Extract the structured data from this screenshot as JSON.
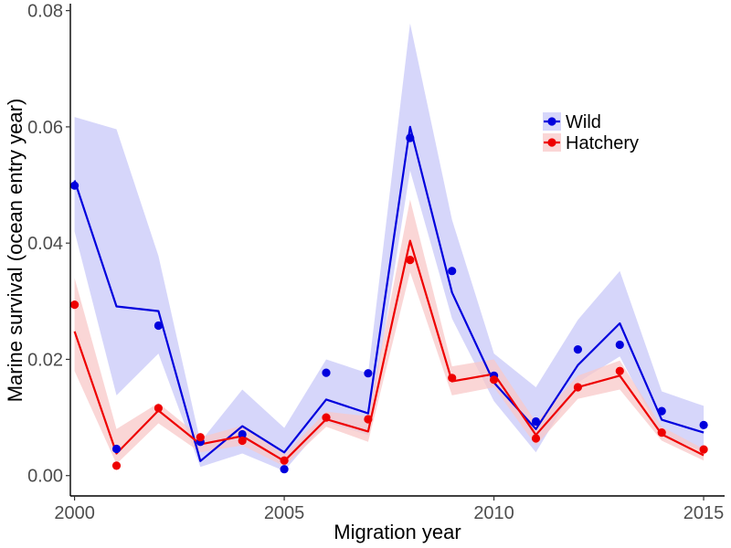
{
  "chart_data": {
    "type": "line",
    "title": "",
    "xlabel": "Migration year",
    "ylabel": "Marine survival (ocean entry year)",
    "xlim": [
      1999.9,
      2015.5
    ],
    "ylim": [
      -0.0035,
      0.0812
    ],
    "x_ticks": [
      2000,
      2005,
      2010,
      2015
    ],
    "y_ticks": [
      0.0,
      0.02,
      0.04,
      0.06,
      0.08
    ],
    "x_tick_labels": [
      "2000",
      "2005",
      "2010",
      "2015"
    ],
    "y_tick_labels": [
      "0.00",
      "0.02",
      "0.04",
      "0.06",
      "0.08"
    ],
    "grid": false,
    "legend_position": "top-right",
    "x": [
      2000,
      2001,
      2002,
      2003,
      2004,
      2005,
      2006,
      2007,
      2008,
      2009,
      2010,
      2011,
      2012,
      2013,
      2014,
      2015
    ],
    "series": [
      {
        "name": "Wild",
        "color": "#0000dd",
        "band_color": "#c8c8f8",
        "observed": [
          0.0499,
          0.0046,
          0.0258,
          0.0058,
          0.0071,
          0.0011,
          0.0177,
          0.0176,
          0.0581,
          0.0352,
          0.0172,
          0.0093,
          0.0217,
          0.0225,
          0.0111,
          0.0087
        ],
        "fitted": [
          0.0508,
          0.0291,
          0.0283,
          0.0025,
          0.0085,
          0.004,
          0.0131,
          0.0107,
          0.06,
          0.0315,
          0.016,
          0.008,
          0.019,
          0.0262,
          0.0096,
          0.0074
        ],
        "lower": [
          0.042,
          0.0138,
          0.021,
          0.0015,
          0.0038,
          0.0008,
          0.0092,
          0.007,
          0.0525,
          0.027,
          0.0128,
          0.004,
          0.016,
          0.0205,
          0.0068,
          0.0042
        ],
        "upper": [
          0.0617,
          0.0596,
          0.0378,
          0.0058,
          0.0148,
          0.0082,
          0.02,
          0.0176,
          0.0778,
          0.044,
          0.021,
          0.0152,
          0.0268,
          0.0352,
          0.0145,
          0.012
        ]
      },
      {
        "name": "Hatchery",
        "color": "#ee0000",
        "band_color": "#f8c8c8",
        "observed": [
          0.0294,
          0.0017,
          0.0116,
          0.0066,
          0.006,
          0.0026,
          0.01,
          0.0097,
          0.0371,
          0.0168,
          0.0165,
          0.0064,
          0.0152,
          0.018,
          0.0074,
          0.0045
        ],
        "fitted": [
          0.0248,
          0.0038,
          0.0112,
          0.0054,
          0.0068,
          0.0025,
          0.0097,
          0.0076,
          0.0404,
          0.0162,
          0.0175,
          0.007,
          0.0152,
          0.0172,
          0.0071,
          0.0035
        ],
        "lower": [
          0.018,
          0.002,
          0.009,
          0.004,
          0.0052,
          0.0016,
          0.0084,
          0.0058,
          0.035,
          0.0138,
          0.0152,
          0.0052,
          0.0132,
          0.0148,
          0.006,
          0.0026
        ],
        "upper": [
          0.034,
          0.008,
          0.0125,
          0.0066,
          0.0086,
          0.0036,
          0.011,
          0.0102,
          0.0475,
          0.0188,
          0.02,
          0.0092,
          0.0172,
          0.0198,
          0.0084,
          0.0046
        ]
      }
    ]
  }
}
